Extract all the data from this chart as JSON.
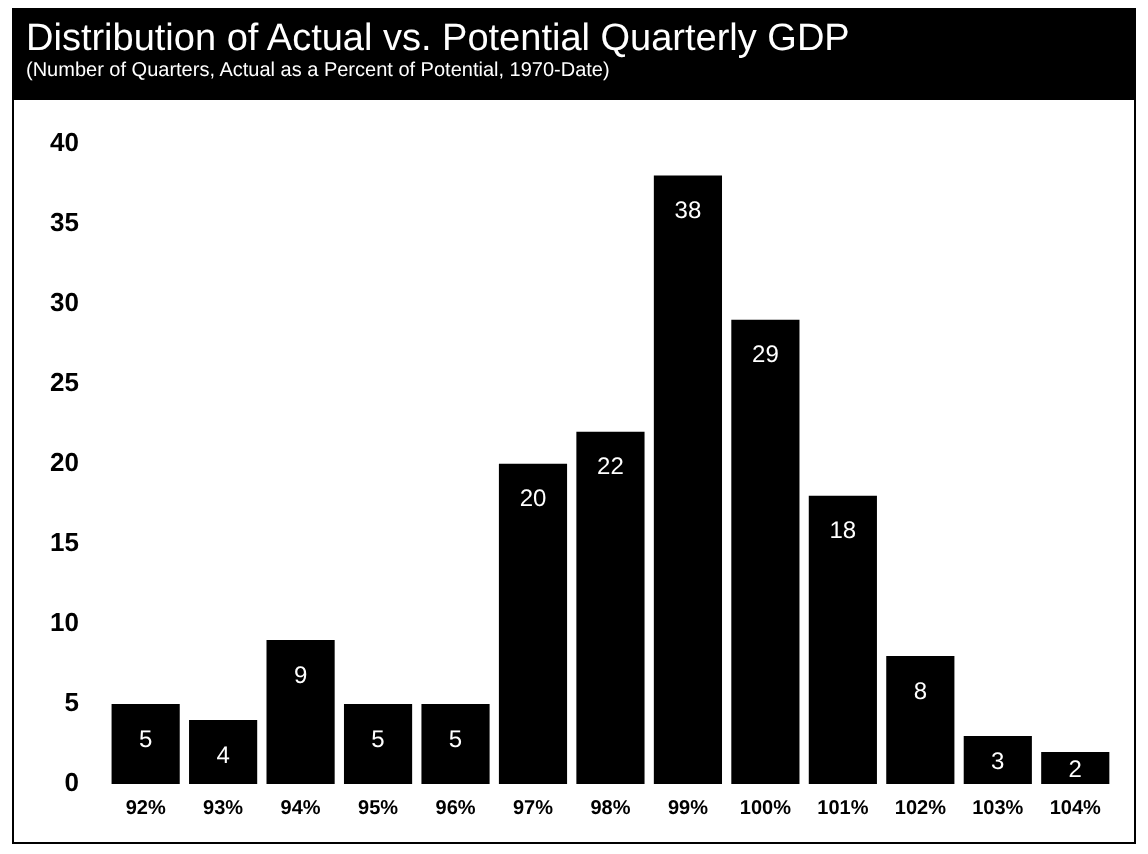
{
  "chart_data": {
    "type": "bar",
    "title": "Distribution of Actual vs. Potential Quarterly GDP",
    "subtitle": "(Number of Quarters, Actual as a Percent of Potential, 1970-Date)",
    "categories": [
      "92%",
      "93%",
      "94%",
      "95%",
      "96%",
      "97%",
      "98%",
      "99%",
      "100%",
      "101%",
      "102%",
      "103%",
      "104%"
    ],
    "values": [
      5,
      4,
      9,
      5,
      5,
      20,
      22,
      38,
      29,
      18,
      8,
      3,
      2
    ],
    "color": "#000000",
    "ylim": [
      0,
      40
    ],
    "yticks": [
      0,
      5,
      10,
      15,
      20,
      25,
      30,
      35,
      40
    ],
    "grid": false,
    "legend": false,
    "data_labels": true
  }
}
